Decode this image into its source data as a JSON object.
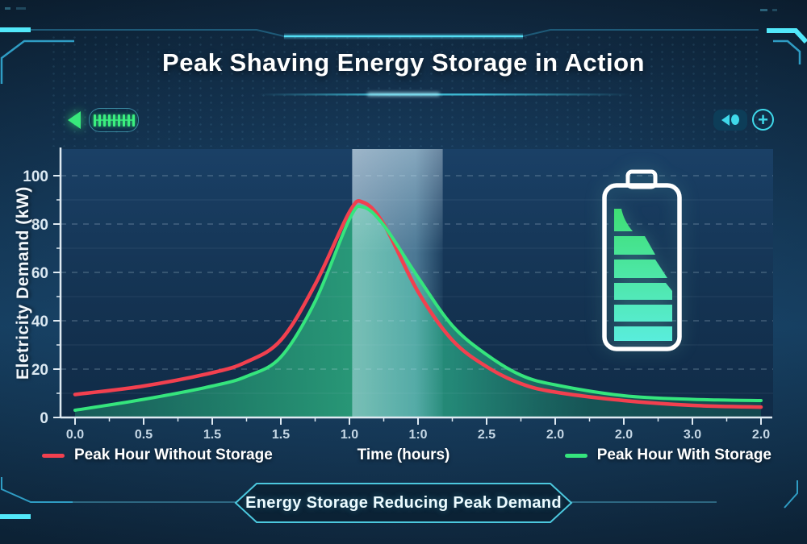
{
  "header": {
    "title": "Peak Shaving Energy Storage in Action"
  },
  "controls": {
    "ticker_bar_count": 9,
    "icons": {
      "zoom_in_glyph": "+"
    }
  },
  "chart_data": {
    "type": "line",
    "title": "Peak Shaving Energy Storage in Action",
    "xlabel": "Time (hours)",
    "ylabel": "Eletricity Demand (kW)",
    "x_tick_labels": [
      "0.0",
      "0.5",
      "1.5",
      "1.5",
      "1.0",
      "1:0",
      "2.5",
      "2.0",
      "2.0",
      "3.0",
      "2.0"
    ],
    "y_tick_labels": [
      "0",
      "20",
      "40",
      "60",
      "80",
      "100"
    ],
    "y_ticks": [
      0,
      20,
      40,
      60,
      80,
      100
    ],
    "y_minor_ticks": [
      10,
      30,
      50,
      70,
      90
    ],
    "ylim": [
      0,
      111
    ],
    "x_range_hours": [
      0,
      5
    ],
    "grid": true,
    "legend_position": "bottom",
    "x": [
      0,
      0.5,
      1,
      1.25,
      1.5,
      1.75,
      2,
      2.1,
      2.25,
      2.5,
      2.75,
      3,
      3.25,
      3.5,
      4,
      4.5,
      5
    ],
    "series": [
      {
        "name": "Peak Hour Without Storage",
        "color": "#f2404f",
        "values": [
          9.5,
          13,
          18.5,
          23,
          32,
          55,
          85,
          89,
          80,
          52,
          32,
          21,
          14,
          10.5,
          7,
          5,
          4.3
        ]
      },
      {
        "name": "Peak Hour With Storage",
        "color": "#35e57d",
        "values": [
          3,
          7.5,
          13,
          17,
          25,
          48,
          82,
          87,
          79.5,
          58,
          38,
          26,
          17.5,
          13.5,
          9,
          7.5,
          7
        ]
      }
    ],
    "highlight_band_hours": [
      2.02,
      2.68
    ]
  },
  "footer": {
    "banner_text": "Energy Storage Reducing Peak Demand"
  },
  "colors": {
    "line_without_storage": "#f2404f",
    "line_with_storage": "#35e57d",
    "accent_cyan": "#3fd9ea",
    "accent_green": "#38e97b",
    "band_highlight": "#9fd2e8",
    "area_fill_teal": "#1f8f70",
    "axis_text": "#dce9f2"
  }
}
